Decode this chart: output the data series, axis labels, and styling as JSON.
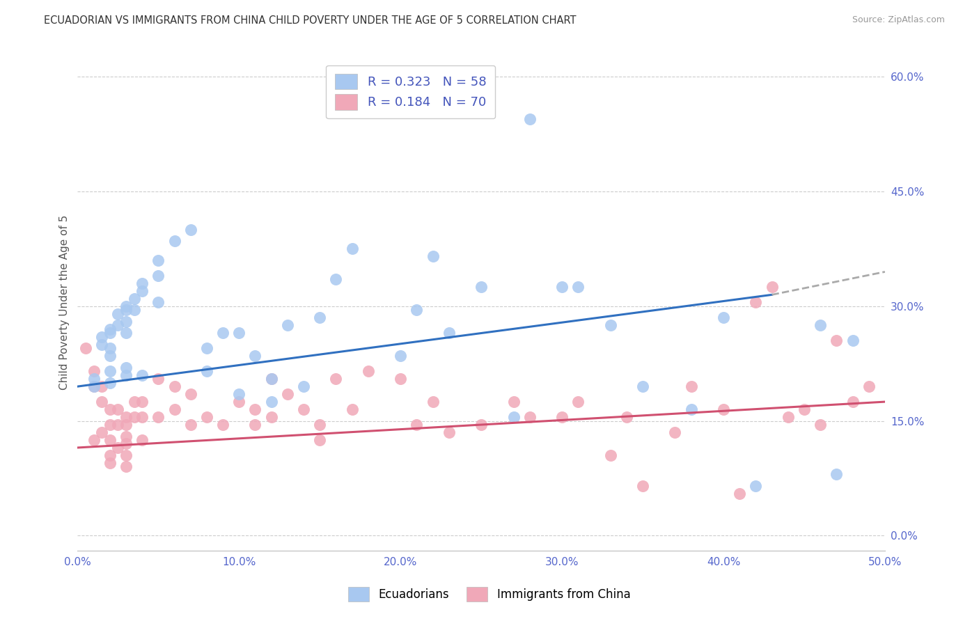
{
  "title": "ECUADORIAN VS IMMIGRANTS FROM CHINA CHILD POVERTY UNDER THE AGE OF 5 CORRELATION CHART",
  "source": "Source: ZipAtlas.com",
  "ylabel": "Child Poverty Under the Age of 5",
  "right_yticks": [
    0.0,
    0.15,
    0.3,
    0.45,
    0.6
  ],
  "right_yticklabels": [
    "0.0%",
    "15.0%",
    "30.0%",
    "45.0%",
    "60.0%"
  ],
  "xmin": 0.0,
  "xmax": 0.5,
  "ymin": -0.02,
  "ymax": 0.63,
  "legend_r1": "R = 0.323",
  "legend_n1": "N = 58",
  "legend_r2": "R = 0.184",
  "legend_n2": "N = 70",
  "color_blue": "#A8C8F0",
  "color_pink": "#F0A8B8",
  "line_blue": "#3070C0",
  "line_pink": "#D05070",
  "line_dashed": "#AAAAAA",
  "background": "#FFFFFF",
  "grid_color": "#CCCCCC",
  "blue_x": [
    0.01,
    0.01,
    0.015,
    0.015,
    0.02,
    0.02,
    0.02,
    0.02,
    0.02,
    0.02,
    0.025,
    0.025,
    0.03,
    0.03,
    0.03,
    0.03,
    0.03,
    0.03,
    0.035,
    0.035,
    0.04,
    0.04,
    0.04,
    0.05,
    0.05,
    0.05,
    0.06,
    0.07,
    0.08,
    0.08,
    0.09,
    0.1,
    0.1,
    0.11,
    0.12,
    0.12,
    0.13,
    0.14,
    0.15,
    0.16,
    0.17,
    0.2,
    0.21,
    0.22,
    0.23,
    0.25,
    0.27,
    0.28,
    0.3,
    0.31,
    0.33,
    0.35,
    0.38,
    0.4,
    0.42,
    0.46,
    0.47,
    0.48
  ],
  "blue_y": [
    0.205,
    0.195,
    0.26,
    0.25,
    0.27,
    0.265,
    0.245,
    0.235,
    0.215,
    0.2,
    0.29,
    0.275,
    0.3,
    0.295,
    0.28,
    0.265,
    0.22,
    0.21,
    0.31,
    0.295,
    0.33,
    0.32,
    0.21,
    0.36,
    0.34,
    0.305,
    0.385,
    0.4,
    0.245,
    0.215,
    0.265,
    0.265,
    0.185,
    0.235,
    0.205,
    0.175,
    0.275,
    0.195,
    0.285,
    0.335,
    0.375,
    0.235,
    0.295,
    0.365,
    0.265,
    0.325,
    0.155,
    0.545,
    0.325,
    0.325,
    0.275,
    0.195,
    0.165,
    0.285,
    0.065,
    0.275,
    0.08,
    0.255
  ],
  "pink_x": [
    0.005,
    0.01,
    0.01,
    0.01,
    0.015,
    0.015,
    0.015,
    0.02,
    0.02,
    0.02,
    0.02,
    0.02,
    0.025,
    0.025,
    0.025,
    0.03,
    0.03,
    0.03,
    0.03,
    0.03,
    0.03,
    0.035,
    0.035,
    0.04,
    0.04,
    0.04,
    0.05,
    0.05,
    0.06,
    0.06,
    0.07,
    0.07,
    0.08,
    0.09,
    0.1,
    0.11,
    0.11,
    0.12,
    0.12,
    0.13,
    0.14,
    0.15,
    0.15,
    0.16,
    0.17,
    0.18,
    0.2,
    0.21,
    0.22,
    0.23,
    0.25,
    0.27,
    0.28,
    0.3,
    0.31,
    0.33,
    0.34,
    0.35,
    0.37,
    0.38,
    0.4,
    0.41,
    0.42,
    0.43,
    0.44,
    0.45,
    0.46,
    0.47,
    0.48,
    0.49
  ],
  "pink_y": [
    0.245,
    0.215,
    0.195,
    0.125,
    0.195,
    0.175,
    0.135,
    0.165,
    0.145,
    0.125,
    0.105,
    0.095,
    0.165,
    0.145,
    0.115,
    0.155,
    0.145,
    0.13,
    0.12,
    0.105,
    0.09,
    0.175,
    0.155,
    0.175,
    0.155,
    0.125,
    0.205,
    0.155,
    0.195,
    0.165,
    0.185,
    0.145,
    0.155,
    0.145,
    0.175,
    0.165,
    0.145,
    0.205,
    0.155,
    0.185,
    0.165,
    0.145,
    0.125,
    0.205,
    0.165,
    0.215,
    0.205,
    0.145,
    0.175,
    0.135,
    0.145,
    0.175,
    0.155,
    0.155,
    0.175,
    0.105,
    0.155,
    0.065,
    0.135,
    0.195,
    0.165,
    0.055,
    0.305,
    0.325,
    0.155,
    0.165,
    0.145,
    0.255,
    0.175,
    0.195
  ]
}
